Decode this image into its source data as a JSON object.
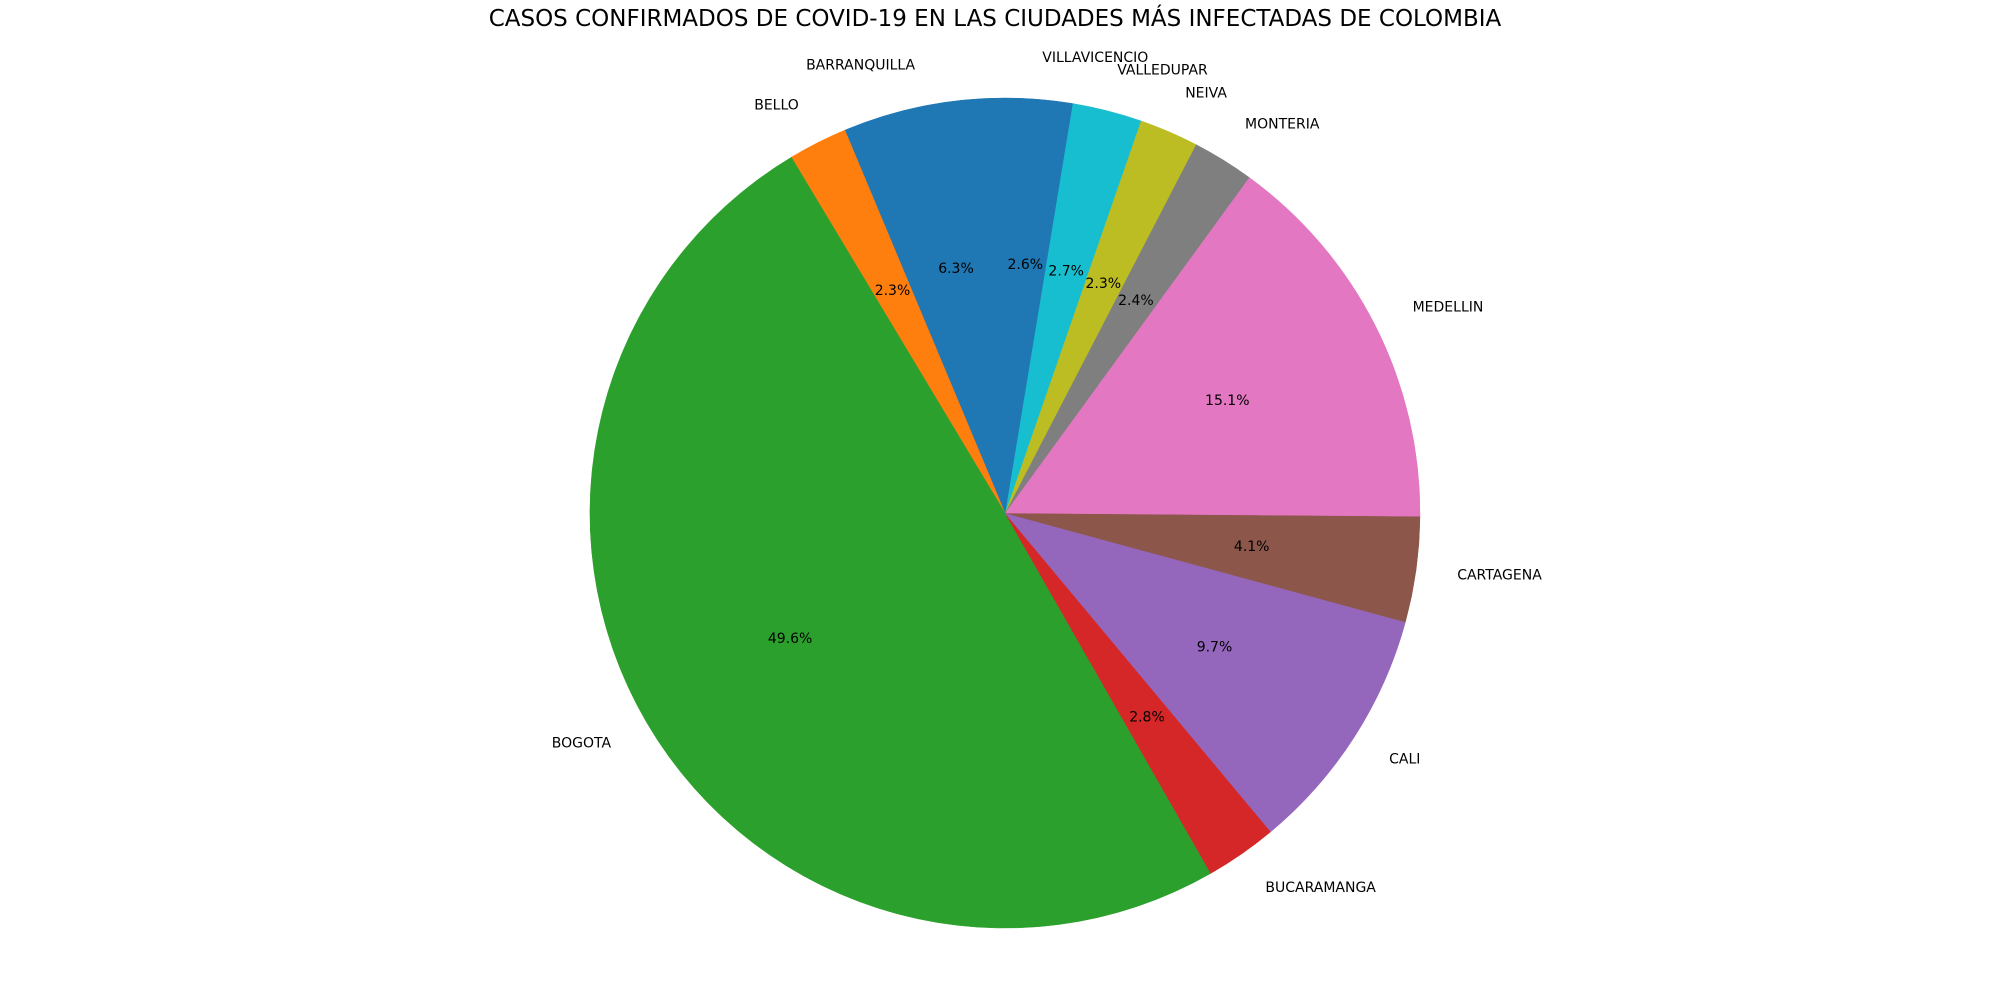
{
  "chart_data": {
    "type": "pie",
    "title": "CASOS CONFIRMADOS DE COVID-19 EN LAS CIUDADES MÁS INFECTADAS DE COLOMBIA",
    "start_angle_deg": 90,
    "direction": "counterclockwise",
    "slices": [
      {
        "label": "BARRANQUILLA",
        "value": 6.3,
        "pct_label": "6.3%",
        "color": "#1f77b4"
      },
      {
        "label": "BELLO",
        "value": 2.3,
        "pct_label": "2.3%",
        "color": "#ff7f0e"
      },
      {
        "label": "BOGOTA",
        "value": 49.6,
        "pct_label": "49.6%",
        "color": "#2ca02c"
      },
      {
        "label": "BUCARAMANGA",
        "value": 2.8,
        "pct_label": "2.8%",
        "color": "#d62728"
      },
      {
        "label": "CALI",
        "value": 9.7,
        "pct_label": "9.7%",
        "color": "#9467bd"
      },
      {
        "label": "CARTAGENA",
        "value": 4.1,
        "pct_label": "4.1%",
        "color": "#8c564b"
      },
      {
        "label": "MEDELLIN",
        "value": 15.1,
        "pct_label": "15.1%",
        "color": "#e377c2"
      },
      {
        "label": "MONTERIA",
        "value": 2.4,
        "pct_label": "2.4%",
        "color": "#7f7f7f"
      },
      {
        "label": "NEIVA",
        "value": 2.3,
        "pct_label": "2.3%",
        "color": "#bcbd22"
      },
      {
        "label": "VALLEDUPAR",
        "value": 2.7,
        "pct_label": "2.7%",
        "color": "#17becf"
      },
      {
        "label": "VILLAVICENCIO",
        "value": 2.6,
        "pct_label": "2.6%",
        "color": "#1f77b4"
      }
    ]
  }
}
